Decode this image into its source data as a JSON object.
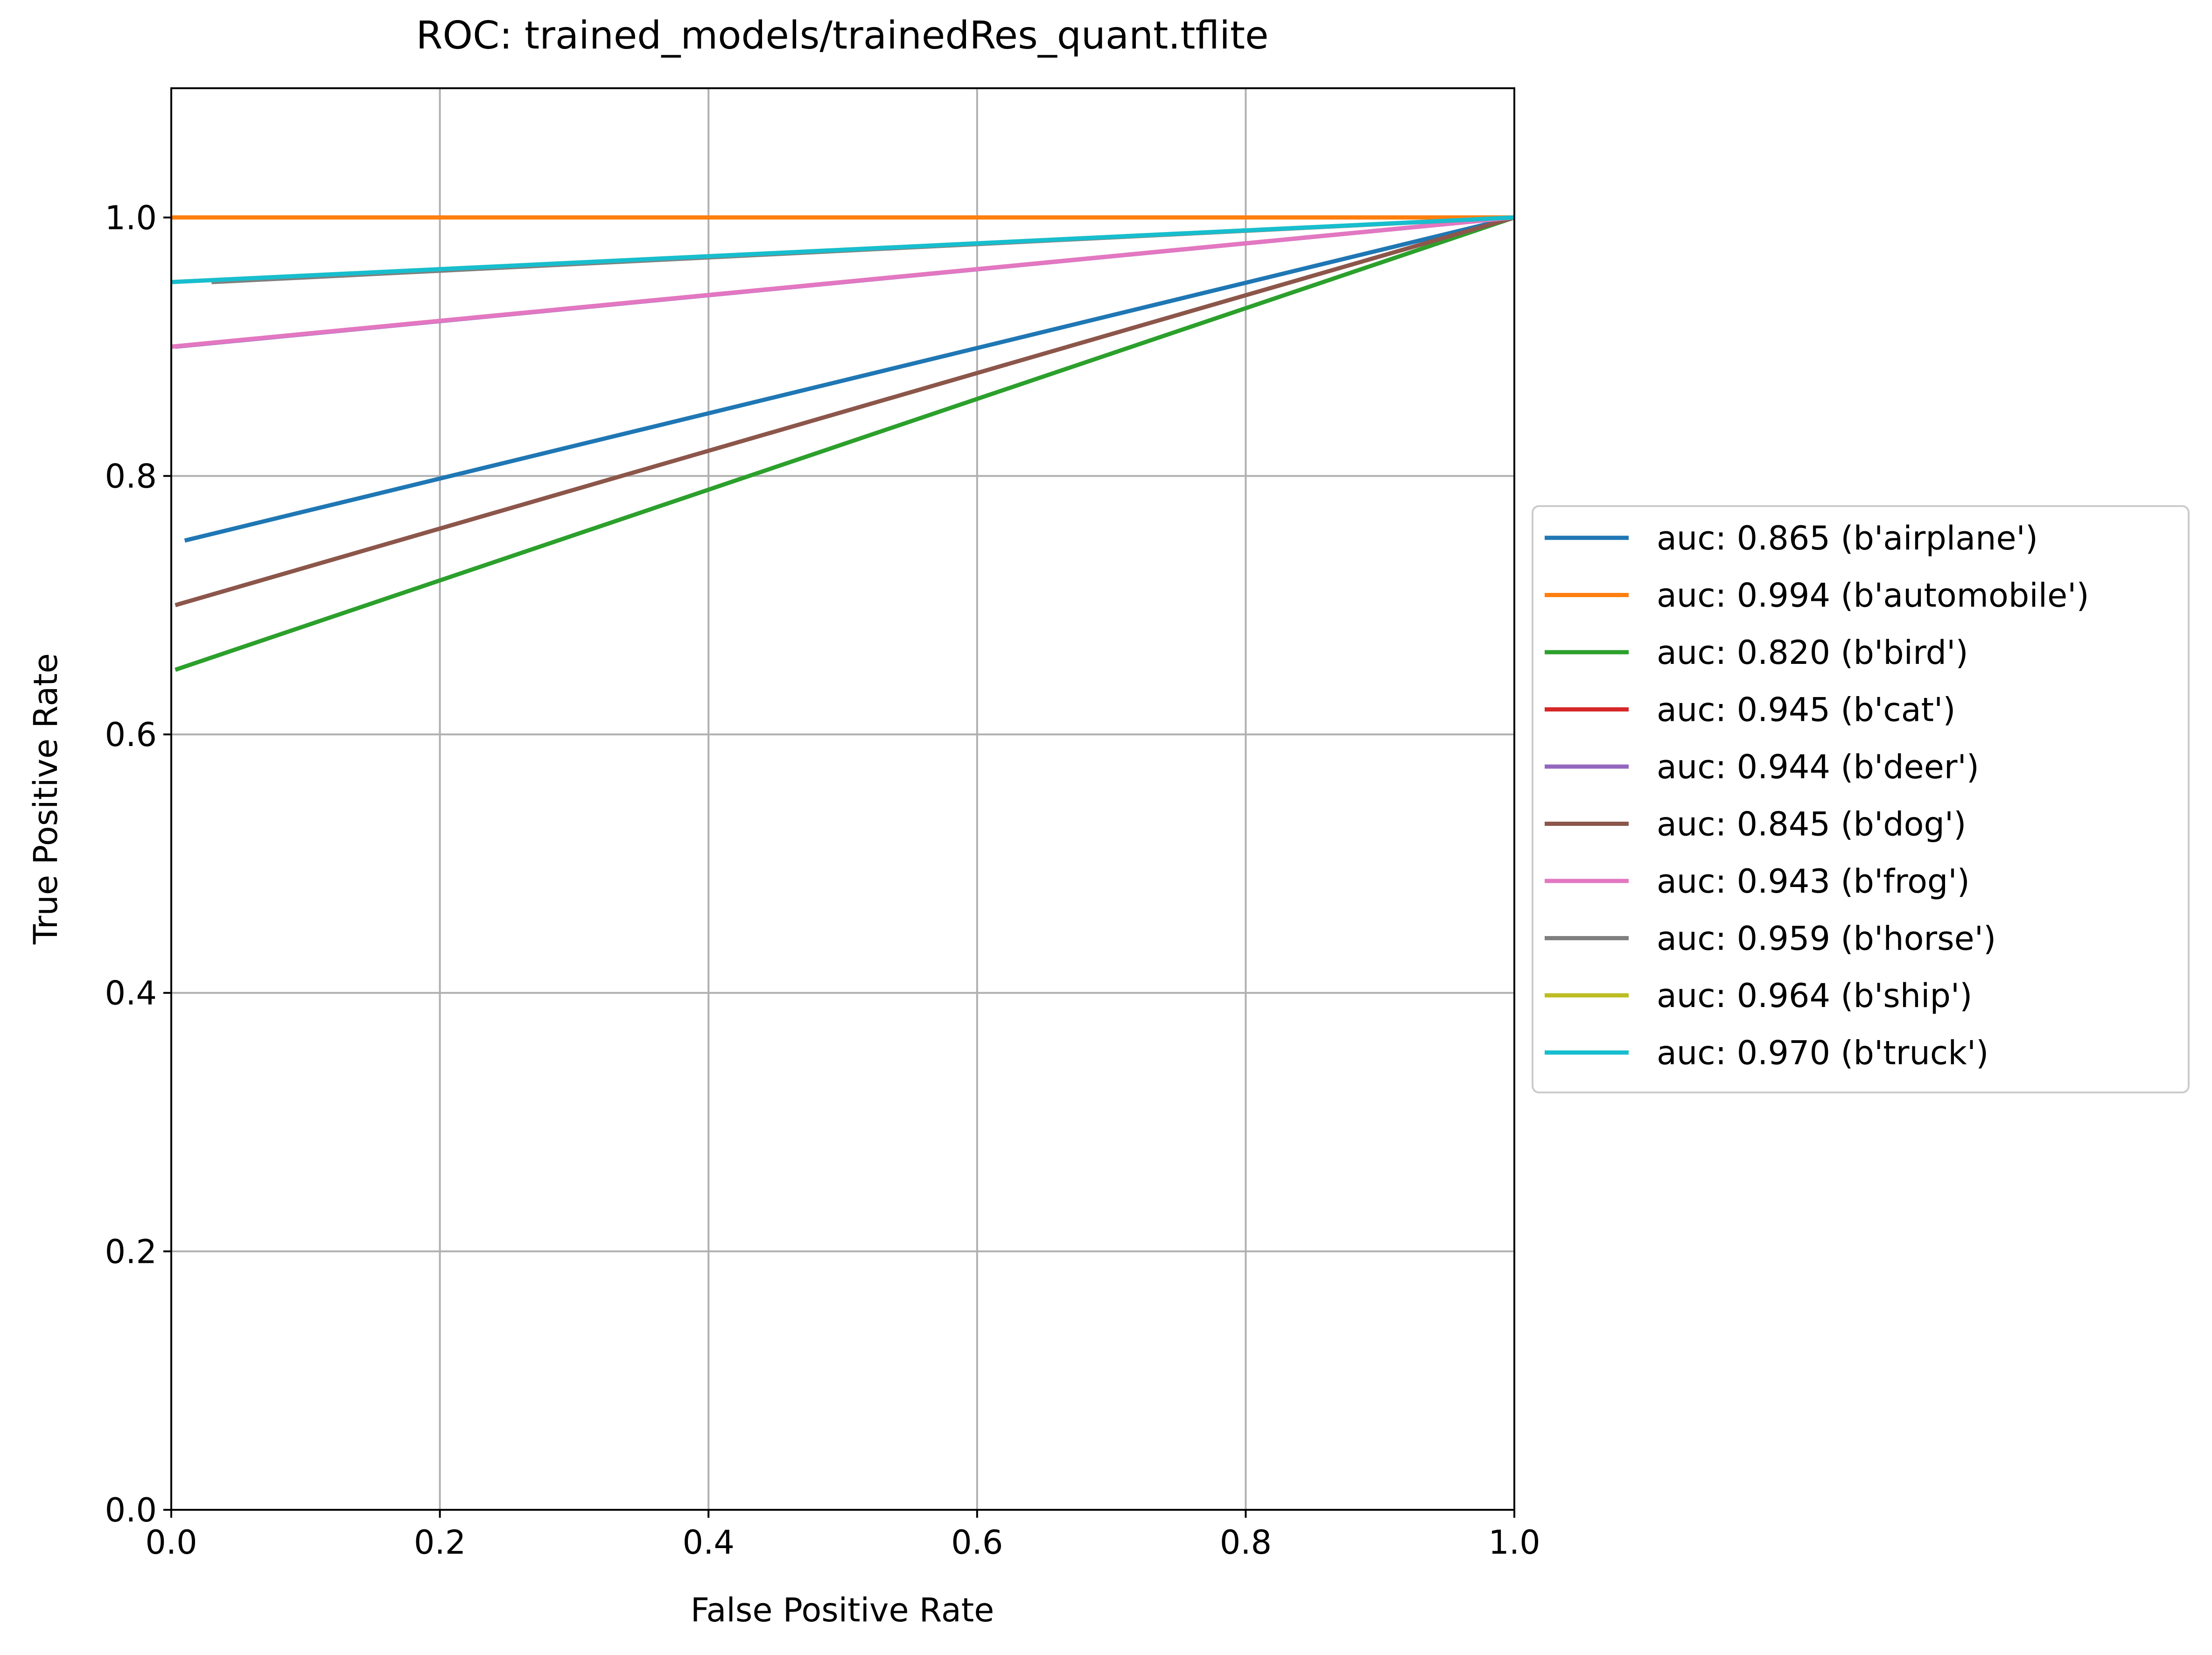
{
  "chart_data": {
    "type": "line",
    "title": "ROC: trained_models/trainedRes_quant.tflite",
    "xlabel": "False Positive Rate",
    "ylabel": "True Positive Rate",
    "xlim": [
      0.0,
      1.0
    ],
    "ylim": [
      0.0,
      1.1
    ],
    "xticks": [
      0.0,
      0.2,
      0.4,
      0.6,
      0.8,
      1.0
    ],
    "yticks": [
      0.0,
      0.2,
      0.4,
      0.6,
      0.8,
      1.0
    ],
    "xtick_labels": [
      "0.0",
      "0.2",
      "0.4",
      "0.6",
      "0.8",
      "1.0"
    ],
    "ytick_labels": [
      "0.0",
      "0.2",
      "0.4",
      "0.6",
      "0.8",
      "1.0"
    ],
    "grid": true,
    "legend_position": "outside right, vertically centered",
    "series": [
      {
        "name": "auc: 0.865 (b'airplane')",
        "color": "#1f77b4",
        "points": [
          [
            0.01,
            0.75
          ],
          [
            1.0,
            1.0
          ]
        ]
      },
      {
        "name": "auc: 0.994 (b'automobile')",
        "color": "#ff7f0e",
        "points": [
          [
            0.0,
            1.0
          ],
          [
            1.0,
            1.0
          ]
        ]
      },
      {
        "name": "auc: 0.820 (b'bird')",
        "color": "#2ca02c",
        "points": [
          [
            0.003,
            0.65
          ],
          [
            1.0,
            1.0
          ]
        ]
      },
      {
        "name": "auc: 0.945 (b'cat')",
        "color": "#d62728",
        "points": [
          [
            0.0,
            0.9
          ],
          [
            1.0,
            1.0
          ]
        ]
      },
      {
        "name": "auc: 0.944 (b'deer')",
        "color": "#9467bd",
        "points": [
          [
            0.003,
            0.9
          ],
          [
            1.0,
            1.0
          ]
        ]
      },
      {
        "name": "auc: 0.845 (b'dog')",
        "color": "#8c564b",
        "points": [
          [
            0.003,
            0.7
          ],
          [
            1.0,
            1.0
          ]
        ]
      },
      {
        "name": "auc: 0.943 (b'frog')",
        "color": "#e377c2",
        "points": [
          [
            0.0,
            0.9
          ],
          [
            1.0,
            1.0
          ]
        ]
      },
      {
        "name": "auc: 0.959 (b'horse')",
        "color": "#7f7f7f",
        "points": [
          [
            0.03,
            0.95
          ],
          [
            1.0,
            1.0
          ]
        ]
      },
      {
        "name": "auc: 0.964 (b'ship')",
        "color": "#bcbd22",
        "points": [
          [
            0.0,
            0.95
          ],
          [
            1.0,
            1.0
          ]
        ]
      },
      {
        "name": "auc: 0.970 (b'truck')",
        "color": "#17becf",
        "points": [
          [
            0.0,
            0.95
          ],
          [
            1.0,
            1.0
          ]
        ]
      }
    ]
  }
}
